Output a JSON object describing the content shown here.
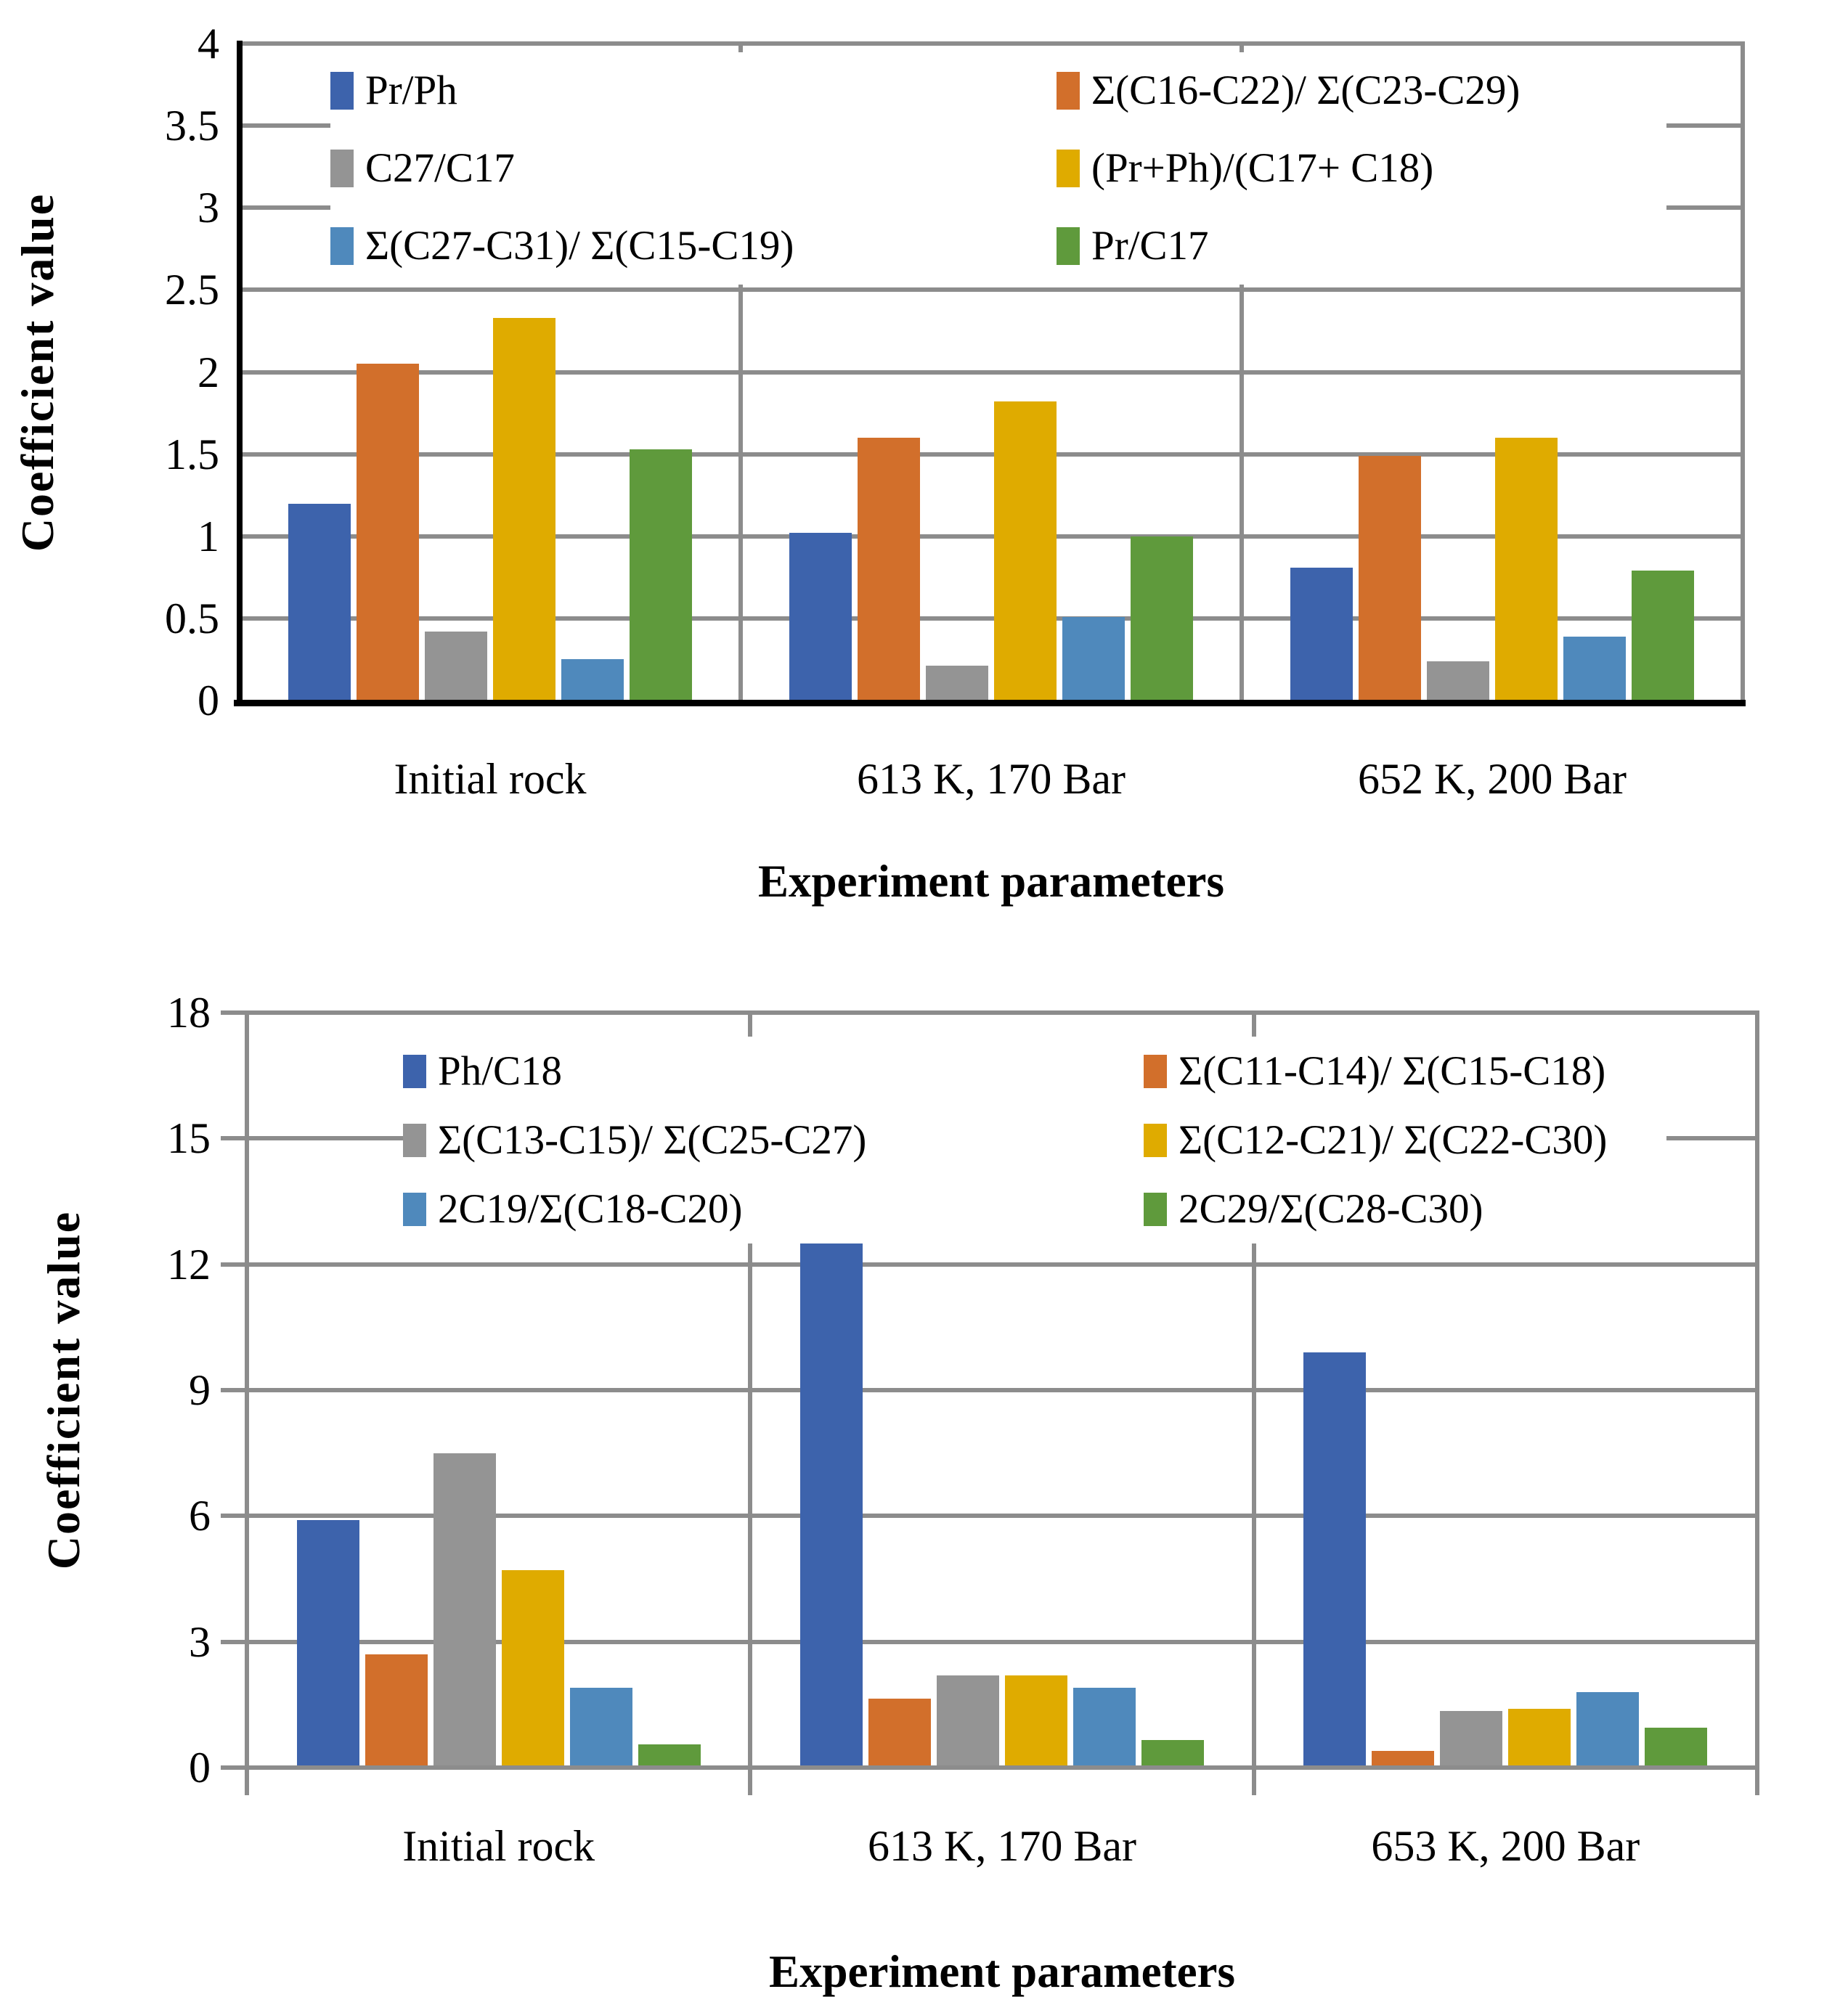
{
  "figure": {
    "description": "Two grouped bar charts of biomarker coefficient values vs experiment parameters"
  },
  "chart_data": [
    {
      "type": "bar",
      "title": "",
      "y_axis": {
        "label": "Coefficient value",
        "min": 0,
        "max": 4,
        "step": 0.5,
        "tick_labels": [
          "0",
          "0.5",
          "1",
          "1.5",
          "2",
          "2.5",
          "3",
          "3.5",
          "4"
        ],
        "grid": true
      },
      "x_axis": {
        "label": "Experiment parameters"
      },
      "categories": [
        "Initial rock",
        "613 K, 170 Bar",
        "652 K, 200 Bar"
      ],
      "legend_position": "inside-top, two columns",
      "series": [
        {
          "name": "Pr/Ph",
          "color": "#3D63AC",
          "values": [
            1.2,
            1.02,
            0.81
          ]
        },
        {
          "name": "Σ(C16-C22)/ Σ(C23-C29)",
          "color": "#D26F2B",
          "values": [
            2.05,
            1.6,
            1.49
          ]
        },
        {
          "name": "C27/C17",
          "color": "#949494",
          "values": [
            0.42,
            0.21,
            0.24
          ]
        },
        {
          "name": "(Pr+Ph)/(C17+ C18)",
          "color": "#DFAB00",
          "values": [
            2.33,
            1.82,
            1.6
          ]
        },
        {
          "name": "Σ(C27-C31)/ Σ(C15-C19)",
          "color": "#4F89BC",
          "values": [
            0.25,
            0.51,
            0.39
          ]
        },
        {
          "name": "Pr/C17",
          "color": "#5F9A3C",
          "values": [
            1.53,
            1.0,
            0.79
          ]
        }
      ]
    },
    {
      "type": "bar",
      "title": "",
      "y_axis": {
        "label": "Coefficient value",
        "min": 0,
        "max": 18,
        "step": 3,
        "tick_labels": [
          "0",
          "3",
          "6",
          "9",
          "12",
          "15",
          "18"
        ],
        "grid": true
      },
      "x_axis": {
        "label": "Experiment parameters"
      },
      "categories": [
        "Initial rock",
        "613 K, 170 Bar",
        "653 K, 200 Bar"
      ],
      "legend_position": "inside-top, two columns",
      "series": [
        {
          "name": "Ph/C18",
          "color": "#3D63AC",
          "values": [
            5.9,
            12.6,
            9.9
          ]
        },
        {
          "name": "Σ(C11-C14)/ Σ(C15-C18)",
          "color": "#D26F2B",
          "values": [
            2.7,
            1.65,
            0.4
          ]
        },
        {
          "name": "Σ(C13-C15)/ Σ(C25-C27)",
          "color": "#949494",
          "values": [
            7.5,
            2.2,
            1.35
          ]
        },
        {
          "name": "Σ(C12-C21)/ Σ(C22-C30)",
          "color": "#DFAB00",
          "values": [
            4.7,
            2.2,
            1.4
          ]
        },
        {
          "name": "2C19/Σ(C18-C20)",
          "color": "#4F89BC",
          "values": [
            1.9,
            1.9,
            1.8
          ]
        },
        {
          "name": "2C29/Σ(C28-C30)",
          "color": "#5F9A3C",
          "values": [
            0.55,
            0.65,
            0.95
          ]
        }
      ]
    }
  ]
}
